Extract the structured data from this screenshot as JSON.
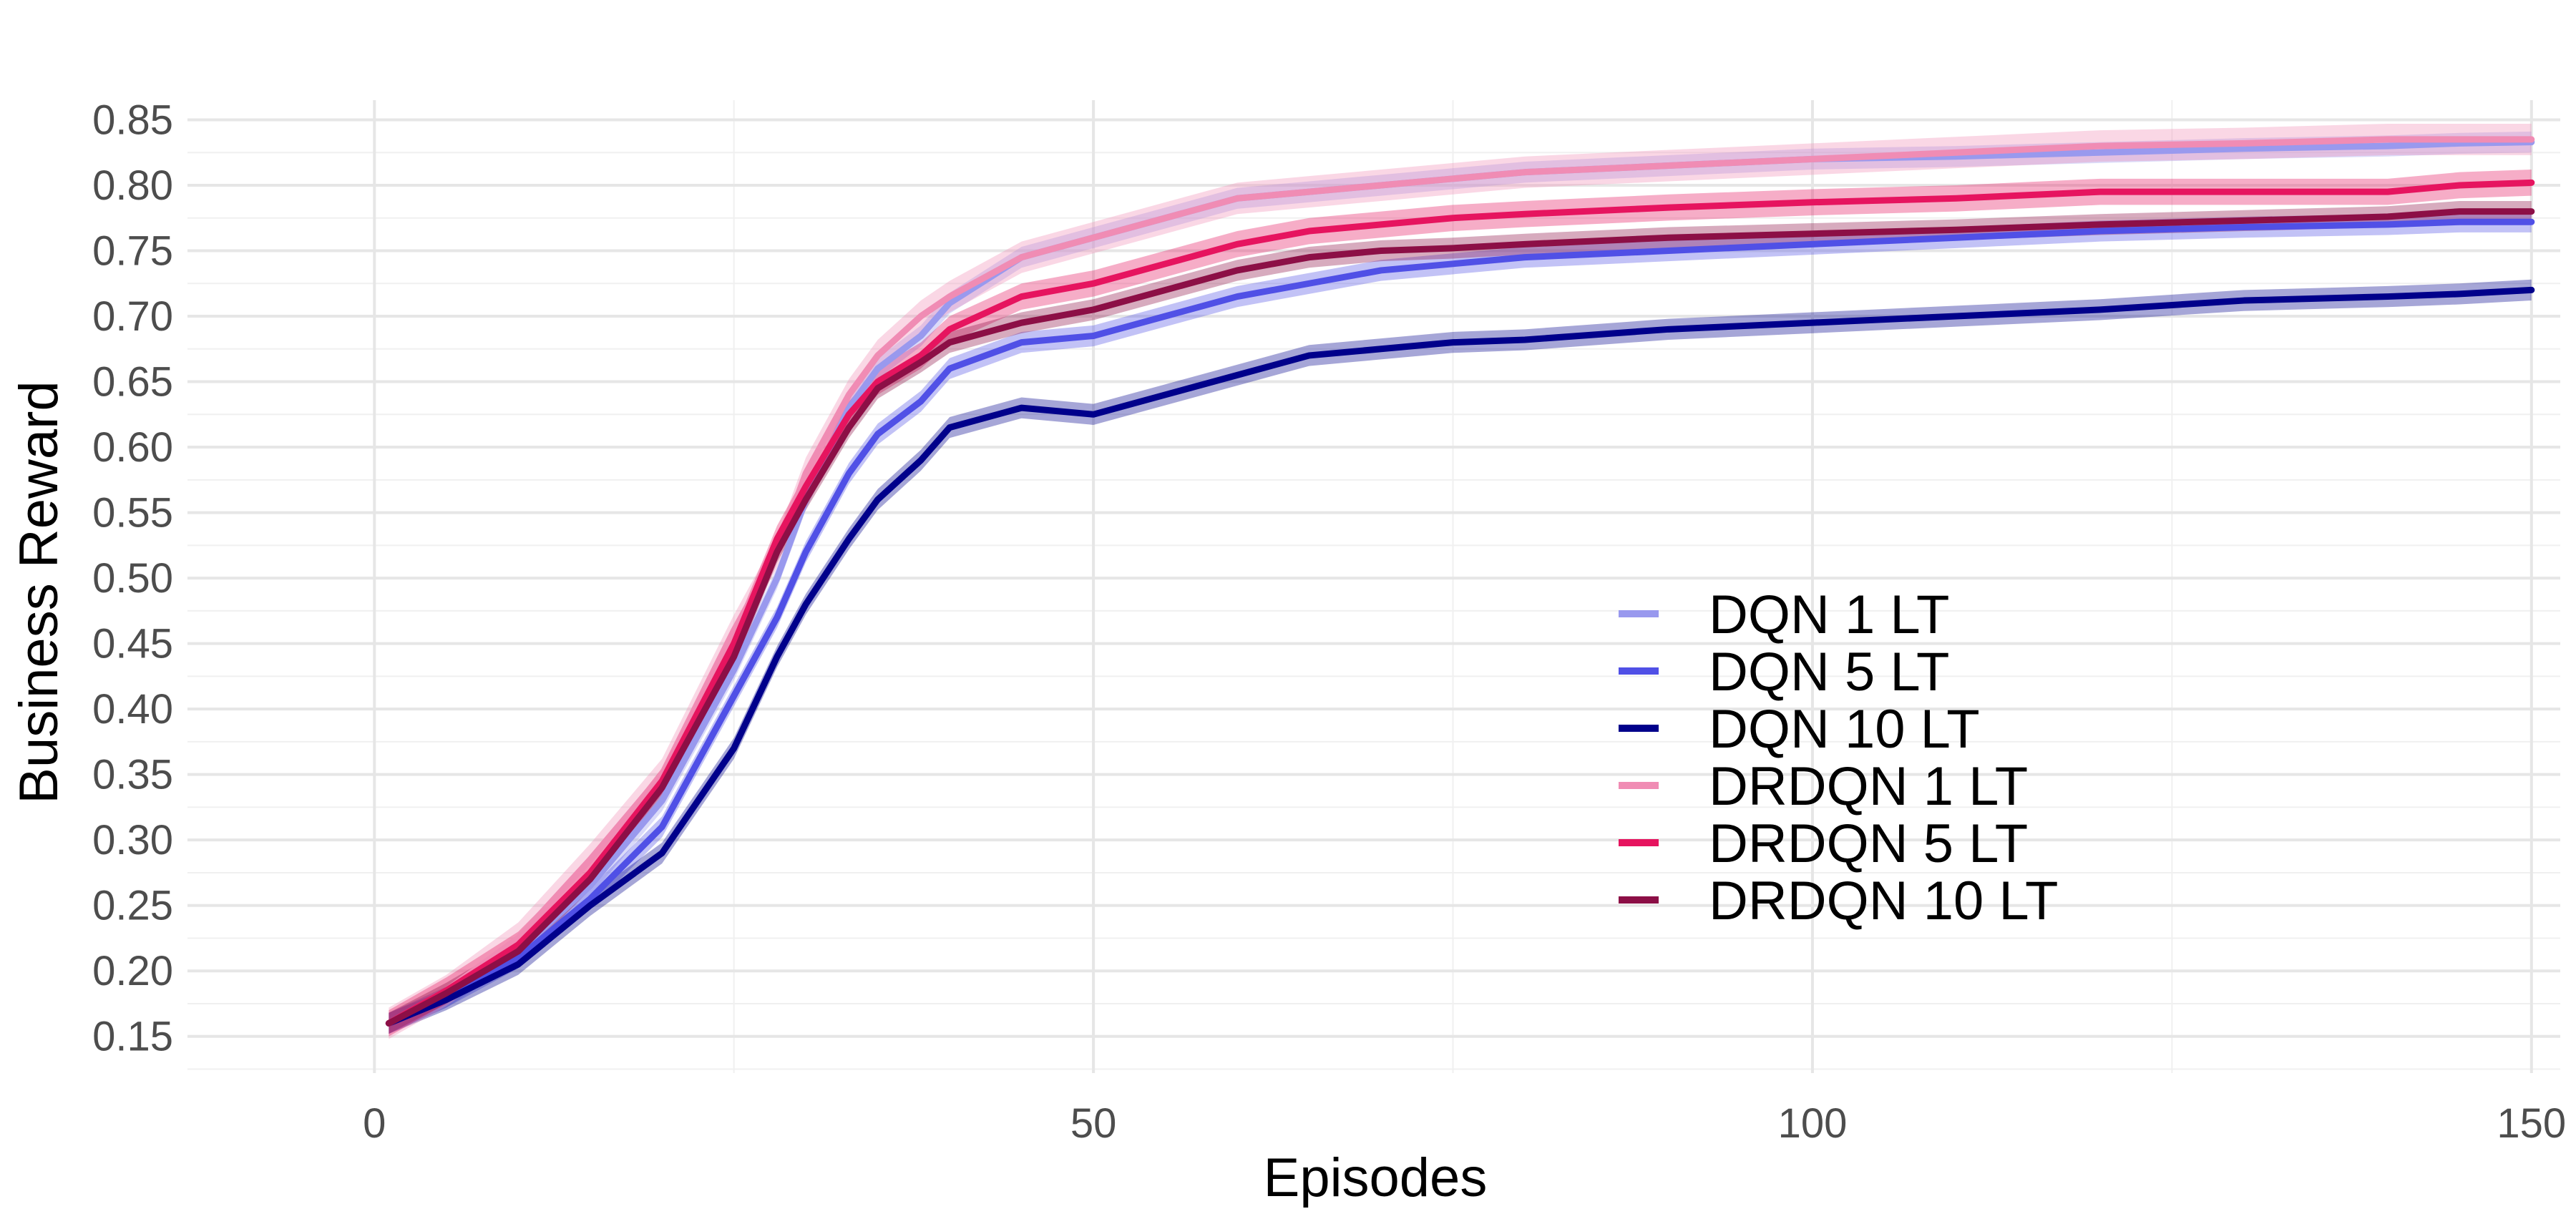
{
  "chart_data": {
    "type": "line",
    "title": "",
    "xlabel": "Episodes",
    "ylabel": "Business Reward",
    "xlim": [
      -13,
      152
    ],
    "ylim": [
      0.122,
      0.865
    ],
    "x_ticks": [
      0,
      50,
      100,
      150
    ],
    "x_tick_labels": [
      "0",
      "50",
      "100",
      "150"
    ],
    "y_ticks": [
      0.15,
      0.2,
      0.25,
      0.3,
      0.35,
      0.4,
      0.45,
      0.5,
      0.55,
      0.6,
      0.65,
      0.7,
      0.75,
      0.8,
      0.85
    ],
    "y_tick_labels": [
      "0.15",
      "0.20",
      "0.25",
      "0.30",
      "0.35",
      "0.40",
      "0.45",
      "0.50",
      "0.55",
      "0.60",
      "0.65",
      "0.70",
      "0.75",
      "0.80",
      "0.85"
    ],
    "grid": true,
    "legend_position": "center-right",
    "x": [
      1,
      5,
      10,
      15,
      20,
      25,
      28,
      30,
      33,
      35,
      38,
      40,
      45,
      50,
      55,
      60,
      65,
      70,
      75,
      80,
      90,
      100,
      110,
      120,
      130,
      140,
      145,
      150
    ],
    "series": [
      {
        "name": "DQN 1 LT",
        "color": "#9999ee",
        "band": 0.008,
        "values": [
          0.16,
          0.18,
          0.215,
          0.265,
          0.33,
          0.43,
          0.5,
          0.56,
          0.63,
          0.66,
          0.685,
          0.71,
          0.745,
          0.76,
          0.775,
          0.79,
          0.795,
          0.8,
          0.805,
          0.81,
          0.815,
          0.82,
          0.822,
          0.825,
          0.828,
          0.83,
          0.832,
          0.833
        ]
      },
      {
        "name": "DQN 5 LT",
        "color": "#5050e6",
        "band": 0.008,
        "values": [
          0.16,
          0.18,
          0.21,
          0.255,
          0.31,
          0.41,
          0.47,
          0.52,
          0.58,
          0.61,
          0.635,
          0.66,
          0.68,
          0.685,
          0.7,
          0.715,
          0.725,
          0.735,
          0.74,
          0.745,
          0.75,
          0.755,
          0.76,
          0.765,
          0.768,
          0.77,
          0.772,
          0.772
        ]
      },
      {
        "name": "DQN 10 LT",
        "color": "#00008b",
        "band": 0.008,
        "values": [
          0.16,
          0.178,
          0.205,
          0.25,
          0.29,
          0.37,
          0.44,
          0.48,
          0.53,
          0.56,
          0.59,
          0.615,
          0.63,
          0.625,
          0.64,
          0.655,
          0.67,
          0.675,
          0.68,
          0.682,
          0.69,
          0.695,
          0.7,
          0.705,
          0.712,
          0.715,
          0.717,
          0.72
        ]
      },
      {
        "name": "DRDQN 1 LT",
        "color": "#f08cb4",
        "band": 0.012,
        "values": [
          0.16,
          0.185,
          0.225,
          0.285,
          0.35,
          0.46,
          0.52,
          0.58,
          0.64,
          0.67,
          0.7,
          0.715,
          0.745,
          0.76,
          0.775,
          0.79,
          0.795,
          0.8,
          0.805,
          0.81,
          0.815,
          0.82,
          0.825,
          0.83,
          0.832,
          0.835,
          0.835,
          0.835
        ]
      },
      {
        "name": "DRDQN 5 LT",
        "color": "#e6145f",
        "band": 0.01,
        "values": [
          0.16,
          0.185,
          0.22,
          0.275,
          0.345,
          0.45,
          0.53,
          0.57,
          0.625,
          0.65,
          0.67,
          0.69,
          0.715,
          0.725,
          0.74,
          0.755,
          0.765,
          0.77,
          0.775,
          0.778,
          0.783,
          0.787,
          0.79,
          0.795,
          0.795,
          0.795,
          0.8,
          0.802
        ]
      },
      {
        "name": "DRDQN 10 LT",
        "color": "#8c0f46",
        "band": 0.008,
        "values": [
          0.16,
          0.183,
          0.215,
          0.27,
          0.34,
          0.44,
          0.52,
          0.56,
          0.615,
          0.645,
          0.665,
          0.68,
          0.695,
          0.705,
          0.72,
          0.735,
          0.745,
          0.75,
          0.752,
          0.755,
          0.76,
          0.763,
          0.766,
          0.77,
          0.773,
          0.776,
          0.78,
          0.78
        ]
      }
    ]
  }
}
